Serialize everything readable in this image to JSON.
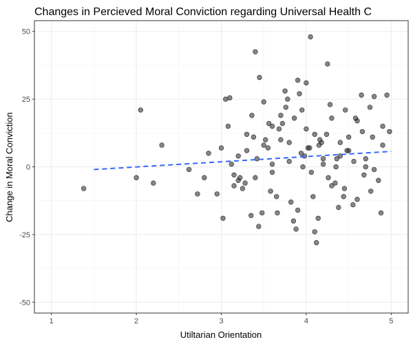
{
  "chart_data": {
    "type": "scatter",
    "title": "Changes in Percieved Moral Conviction regarding Universal Health C",
    "xlabel": "Utiltarian Orientation",
    "ylabel": "Change in Moral Conviction",
    "xlim": [
      0.8,
      5.2
    ],
    "ylim": [
      -54,
      54
    ],
    "x_ticks": [
      1,
      2,
      3,
      4,
      5
    ],
    "y_ticks": [
      -50,
      -25,
      0,
      25,
      50
    ],
    "x_tick_labels": [
      "1",
      "2",
      "3",
      "4",
      "5"
    ],
    "y_tick_labels": [
      "-50",
      "-25",
      "0",
      "25",
      "50"
    ],
    "grid": true,
    "point_color": "#333333",
    "fit_line": {
      "style": "dashed",
      "color": "#3366ff",
      "x": [
        1.5,
        5.0
      ],
      "y": [
        -1.0,
        5.7
      ]
    },
    "points": {
      "x": [
        1.38,
        2.0,
        2.05,
        2.2,
        2.3,
        2.62,
        2.72,
        2.8,
        2.85,
        3.05,
        3.1,
        3.0,
        2.95,
        3.12,
        3.15,
        3.2,
        3.25,
        3.35,
        3.4,
        3.42,
        3.45,
        3.5,
        3.55,
        3.6,
        3.65,
        3.7,
        3.75,
        3.8,
        3.85,
        3.9,
        3.95,
        4.0,
        4.05,
        4.1,
        4.12,
        4.15,
        4.2,
        4.25,
        4.3,
        4.35,
        4.4,
        4.45,
        4.5,
        4.55,
        4.6,
        4.65,
        4.7,
        4.75,
        4.8,
        4.85,
        4.9,
        4.95,
        4.98,
        3.02,
        3.08,
        3.15,
        3.22,
        3.3,
        3.38,
        3.48,
        3.58,
        3.68,
        3.78,
        3.88,
        3.98,
        4.08,
        4.18,
        4.28,
        4.38,
        4.48,
        4.58,
        4.68,
        4.78,
        4.88,
        3.28,
        3.36,
        3.44,
        3.52,
        3.6,
        3.72,
        3.82,
        3.92,
        4.02,
        4.14,
        4.24,
        4.34,
        4.46,
        4.56,
        4.66,
        4.76,
        3.94,
        4.06,
        3.86,
        4.16,
        4.26,
        3.76,
        3.66,
        4.36,
        4.44,
        3.56,
        3.96,
        4.04,
        4.1,
        3.9,
        4.0,
        4.2,
        3.8,
        4.3,
        3.7,
        4.4,
        3.6,
        4.5,
        3.5,
        4.6,
        3.4,
        4.7,
        3.3,
        4.8,
        3.2,
        4.9
      ],
      "y": [
        -8,
        -4,
        21,
        -6,
        8,
        -1,
        -10,
        -4,
        5,
        25,
        25.5,
        7,
        -10,
        1,
        -3,
        -5,
        -8,
        -18,
        42.5,
        3,
        33,
        24,
        7,
        15,
        -11,
        10,
        28,
        2,
        -20,
        32,
        21,
        31,
        48,
        12,
        -28,
        8,
        3,
        38,
        18,
        0,
        9,
        -8,
        6,
        -14,
        17,
        26.5,
        0,
        22,
        26,
        -5,
        8,
        26.5,
        13,
        -19,
        15,
        -7,
        -4,
        6,
        11,
        -17,
        -9,
        14,
        25,
        -23,
        4,
        -11,
        9,
        23,
        -15,
        6,
        18,
        -3,
        11,
        -17,
        -6,
        19,
        -22,
        10,
        1,
        16,
        -13,
        27,
        7,
        -19,
        12,
        -6,
        21,
        2,
        13,
        -9,
        5,
        -2,
        18,
        10,
        -4,
        22,
        -17,
        3,
        -11,
        16,
        0,
        7,
        -24,
        -16,
        14,
        1,
        9,
        -7,
        19,
        4,
        -2,
        11,
        8,
        -12,
        -4,
        3,
        12,
        -1,
        4,
        15
      ]
    }
  }
}
